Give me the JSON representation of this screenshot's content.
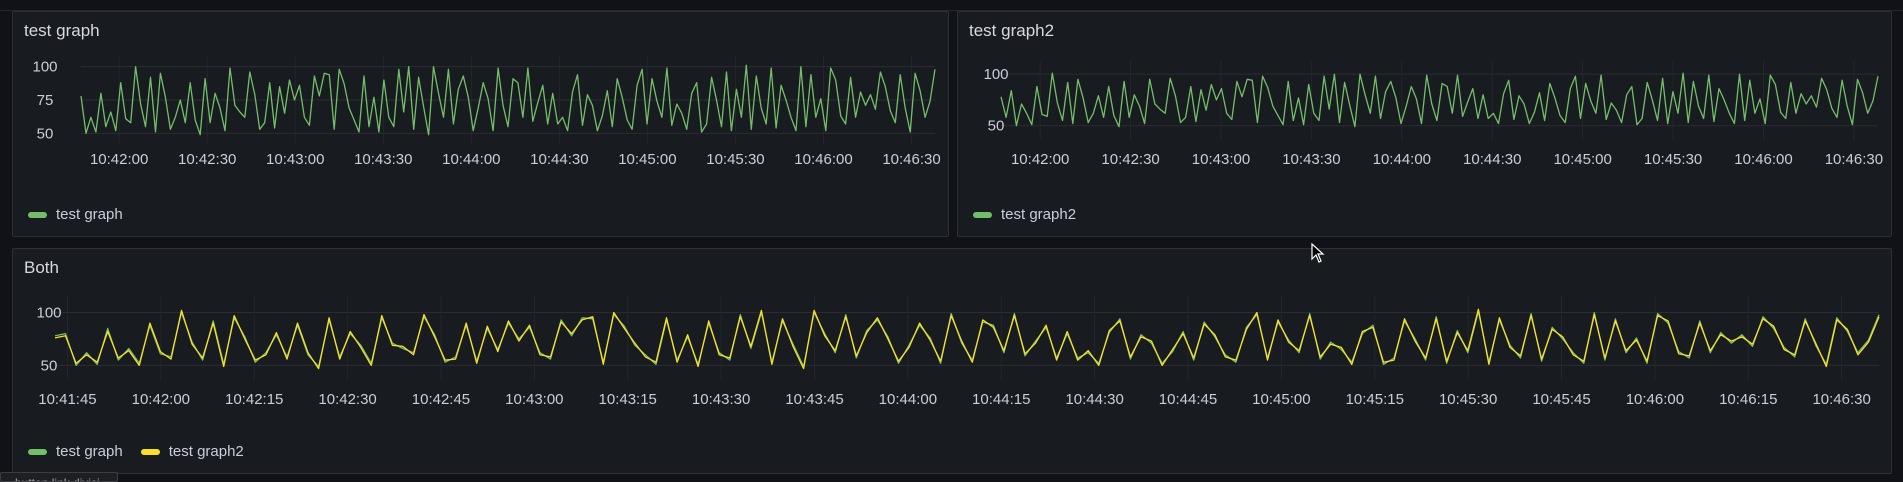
{
  "dashboard": {
    "panels": [
      {
        "title": "test graph",
        "legend": [
          {
            "name": "test graph",
            "color": "#73bf69"
          }
        ]
      },
      {
        "title": "test graph2",
        "legend": [
          {
            "name": "test graph2",
            "color": "#73bf69"
          }
        ]
      },
      {
        "title": "Both",
        "legend": [
          {
            "name": "test graph",
            "color": "#73bf69"
          },
          {
            "name": "test graph2",
            "color": "#fade2a"
          }
        ]
      }
    ],
    "tooltip_text": "...button link divisi..."
  },
  "chart_data": [
    {
      "type": "line",
      "title": "test graph",
      "x_ticks": [
        "10:42:00",
        "10:42:30",
        "10:43:00",
        "10:43:30",
        "10:44:00",
        "10:44:30",
        "10:45:00",
        "10:45:30",
        "10:46:00",
        "10:46:30"
      ],
      "y_ticks": [
        50,
        75,
        100
      ],
      "ylim": [
        45,
        102
      ],
      "x_range": [
        "10:41:47",
        "10:46:38"
      ],
      "grid": true,
      "series": [
        {
          "name": "test graph",
          "color": "#73bf69",
          "values": [
            78,
            50,
            62,
            51,
            80,
            55,
            66,
            52,
            88,
            61,
            58,
            100,
            72,
            55,
            92,
            51,
            95,
            77,
            53,
            62,
            75,
            58,
            88,
            60,
            49,
            91,
            58,
            80,
            69,
            52,
            99,
            71,
            66,
            62,
            96,
            79,
            53,
            58,
            88,
            54,
            85,
            65,
            90,
            75,
            86,
            62,
            56,
            93,
            78,
            95,
            94,
            53,
            98,
            87,
            69,
            60,
            51,
            93,
            55,
            77,
            51,
            90,
            62,
            55,
            98,
            66,
            100,
            53,
            92,
            70,
            49,
            100,
            80,
            62,
            98,
            57,
            83,
            93,
            77,
            52,
            69,
            88,
            76,
            52,
            99,
            71,
            55,
            91,
            88,
            62,
            99,
            59,
            73,
            86,
            57,
            80,
            57,
            62,
            52,
            81,
            94,
            56,
            79,
            71,
            52,
            63,
            82,
            55,
            91,
            77,
            60,
            53,
            86,
            98,
            57,
            91,
            74,
            62,
            99,
            56,
            72,
            65,
            53,
            80,
            88,
            51,
            57,
            92,
            75,
            55,
            96,
            52,
            83,
            62,
            101,
            53,
            93,
            69,
            57,
            99,
            54,
            86,
            75,
            62,
            52,
            100,
            55,
            94,
            62,
            76,
            52,
            99,
            90,
            63,
            57,
            92,
            62,
            81,
            71,
            79,
            68,
            96,
            85,
            67,
            58,
            94,
            69,
            51,
            95,
            82,
            62,
            74,
            98
          ]
        }
      ]
    },
    {
      "type": "line",
      "title": "test graph2",
      "x_ticks": [
        "10:42:00",
        "10:42:30",
        "10:43:00",
        "10:43:30",
        "10:44:00",
        "10:44:30",
        "10:45:00",
        "10:45:30",
        "10:46:00",
        "10:46:30"
      ],
      "y_ticks": [
        50,
        100
      ],
      "ylim": [
        40,
        105
      ],
      "x_range": [
        "10:41:47",
        "10:46:38"
      ],
      "grid": true,
      "series": [
        {
          "name": "test graph2",
          "color": "#73bf69",
          "values": [
            78,
            58,
            84,
            50,
            71,
            62,
            51,
            88,
            61,
            59,
            101,
            72,
            55,
            92,
            52,
            95,
            77,
            53,
            62,
            79,
            58,
            88,
            60,
            49,
            93,
            58,
            80,
            69,
            52,
            95,
            71,
            66,
            62,
            96,
            79,
            53,
            58,
            88,
            54,
            85,
            65,
            90,
            75,
            86,
            62,
            56,
            93,
            78,
            95,
            94,
            53,
            98,
            87,
            69,
            60,
            51,
            93,
            55,
            77,
            51,
            90,
            62,
            55,
            98,
            66,
            100,
            53,
            92,
            70,
            49,
            100,
            80,
            62,
            98,
            57,
            83,
            93,
            77,
            52,
            69,
            88,
            76,
            52,
            99,
            71,
            55,
            91,
            88,
            62,
            99,
            59,
            73,
            86,
            57,
            80,
            57,
            62,
            52,
            81,
            94,
            56,
            79,
            71,
            52,
            63,
            82,
            55,
            91,
            77,
            60,
            53,
            86,
            98,
            57,
            91,
            74,
            62,
            99,
            56,
            72,
            65,
            53,
            80,
            88,
            51,
            57,
            92,
            75,
            55,
            96,
            52,
            83,
            62,
            101,
            53,
            93,
            69,
            57,
            99,
            54,
            86,
            75,
            62,
            52,
            100,
            55,
            94,
            62,
            76,
            52,
            99,
            90,
            63,
            57,
            92,
            62,
            81,
            71,
            79,
            68,
            96,
            85,
            67,
            58,
            94,
            69,
            51,
            95,
            82,
            62,
            74,
            98
          ]
        }
      ]
    },
    {
      "type": "line",
      "title": "Both",
      "x_ticks": [
        "10:41:45",
        "10:42:00",
        "10:42:15",
        "10:42:30",
        "10:42:45",
        "10:43:00",
        "10:43:15",
        "10:43:30",
        "10:43:45",
        "10:44:00",
        "10:44:15",
        "10:44:30",
        "10:44:45",
        "10:45:00",
        "10:45:15",
        "10:45:30",
        "10:45:45",
        "10:46:00",
        "10:46:15",
        "10:46:30"
      ],
      "y_ticks": [
        50,
        100
      ],
      "ylim": [
        40,
        108
      ],
      "x_range": [
        "10:41:43",
        "10:46:36"
      ],
      "grid": true,
      "series": [
        {
          "name": "test graph",
          "color": "#73bf69",
          "values": [
            78,
            80,
            50,
            62,
            51,
            85,
            55,
            66,
            52,
            88,
            61,
            58,
            100,
            72,
            55,
            92,
            51,
            95,
            77,
            53,
            62,
            79,
            58,
            88,
            60,
            49,
            93,
            58,
            80,
            69,
            52,
            95,
            71,
            66,
            62,
            96,
            79,
            53,
            58,
            88,
            54,
            85,
            65,
            90,
            75,
            86,
            62,
            56,
            93,
            78,
            95,
            94,
            53,
            98,
            87,
            69,
            60,
            51,
            93,
            55,
            77,
            51,
            90,
            62,
            55,
            98,
            66,
            100,
            53,
            92,
            70,
            49,
            100,
            80,
            62,
            98,
            57,
            83,
            93,
            77,
            52,
            69,
            88,
            76,
            52,
            99,
            71,
            55,
            91,
            88,
            62,
            99,
            59,
            73,
            86,
            57,
            80,
            57,
            62,
            52,
            81,
            94,
            56,
            79,
            71,
            52,
            63,
            82,
            55,
            91,
            77,
            60,
            53,
            86,
            98,
            57,
            91,
            74,
            62,
            99,
            56,
            72,
            65,
            53,
            80,
            88,
            51,
            57,
            92,
            75,
            55,
            96,
            52,
            83,
            62,
            101,
            53,
            93,
            69,
            57,
            99,
            54,
            86,
            75,
            62,
            52,
            100,
            55,
            94,
            62,
            76,
            52,
            99,
            90,
            63,
            57,
            92,
            62,
            81,
            71,
            79,
            68,
            96,
            85,
            67,
            58,
            94,
            69,
            51,
            95,
            82,
            62,
            74,
            98
          ]
        },
        {
          "name": "test graph2",
          "color": "#fade2a",
          "values": [
            76,
            78,
            52,
            60,
            53,
            82,
            57,
            64,
            50,
            90,
            63,
            56,
            102,
            70,
            57,
            90,
            49,
            97,
            75,
            55,
            60,
            81,
            56,
            90,
            62,
            47,
            95,
            56,
            82,
            67,
            50,
            97,
            69,
            68,
            60,
            98,
            77,
            55,
            56,
            90,
            52,
            87,
            63,
            92,
            73,
            88,
            60,
            58,
            91,
            80,
            93,
            96,
            51,
            100,
            85,
            71,
            58,
            53,
            95,
            53,
            79,
            49,
            92,
            60,
            57,
            96,
            68,
            102,
            51,
            94,
            68,
            47,
            102,
            78,
            64,
            96,
            59,
            81,
            95,
            75,
            54,
            67,
            90,
            74,
            54,
            97,
            73,
            53,
            93,
            86,
            64,
            97,
            61,
            71,
            88,
            55,
            82,
            55,
            64,
            50,
            83,
            92,
            58,
            77,
            73,
            50,
            65,
            80,
            57,
            89,
            79,
            58,
            55,
            84,
            100,
            55,
            93,
            72,
            64,
            97,
            58,
            70,
            67,
            51,
            82,
            86,
            53,
            55,
            94,
            73,
            57,
            94,
            54,
            81,
            64,
            103,
            51,
            95,
            67,
            59,
            97,
            56,
            84,
            77,
            60,
            54,
            98,
            57,
            92,
            64,
            74,
            54,
            97,
            92,
            61,
            59,
            90,
            64,
            79,
            73,
            77,
            70,
            94,
            87,
            65,
            60,
            92,
            71,
            49,
            93,
            84,
            60,
            72,
            96
          ]
        }
      ]
    }
  ]
}
